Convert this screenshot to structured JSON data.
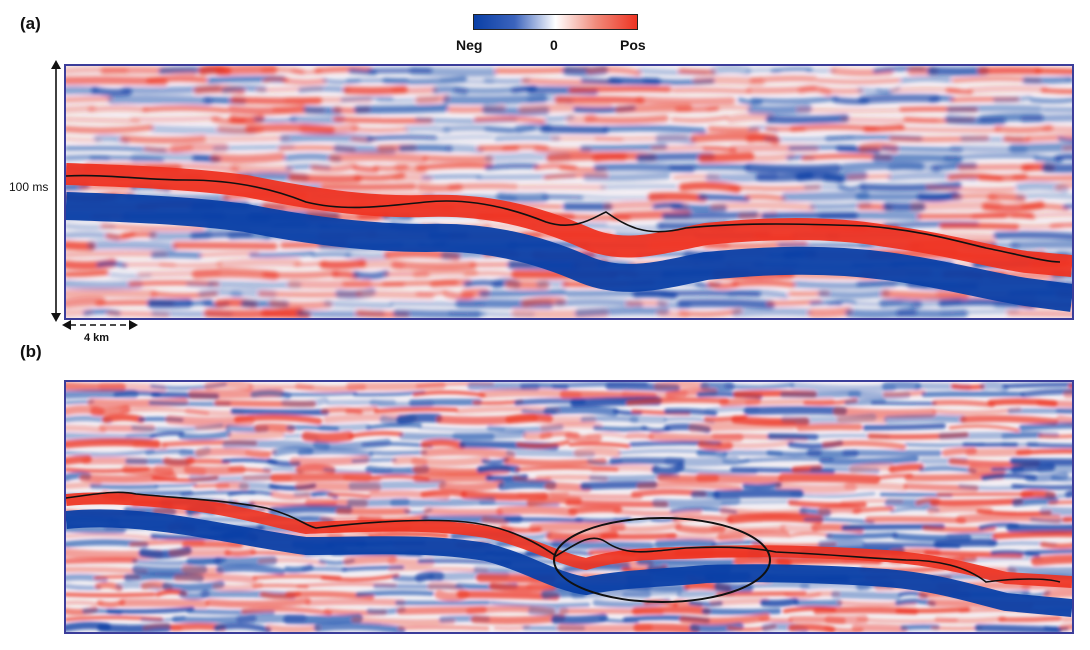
{
  "panels": [
    {
      "id": "a",
      "label": "(a)",
      "time_label": "100 ms",
      "scale_label": "4 km"
    },
    {
      "id": "b",
      "label": "(b)"
    }
  ],
  "colorbar": {
    "neg_label": "Neg",
    "zero_label": "0",
    "pos_label": "Pos",
    "colors": {
      "neg": "#0a3fa6",
      "mid": "#ffffff",
      "pos": "#ee3322"
    }
  }
}
